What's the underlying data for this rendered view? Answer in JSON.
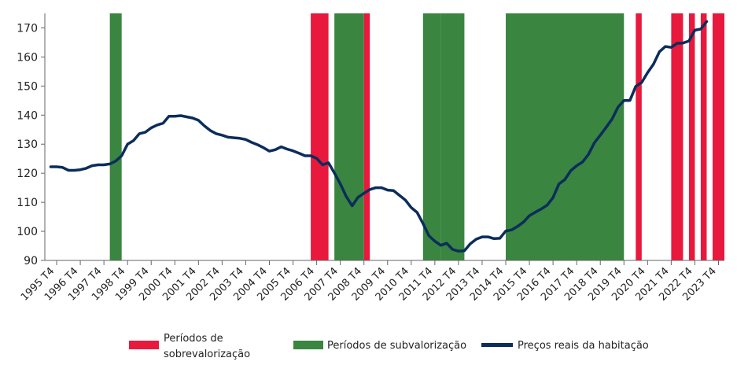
{
  "chart_data": {
    "type": "line",
    "title": "",
    "xlabel": "",
    "ylabel": "",
    "ylim": [
      90,
      175
    ],
    "yticks": [
      90,
      100,
      110,
      120,
      130,
      140,
      150,
      160,
      170
    ],
    "x_categories": [
      "1995 T4",
      "1996 T4",
      "1997 T4",
      "1998 T4",
      "1999 T4",
      "2000 T4",
      "2001 T4",
      "2002 T4",
      "2003 T4",
      "2004 T4",
      "2005 T4",
      "2006 T4",
      "2007 T4",
      "2008 T4",
      "2009 T4",
      "2010 T4",
      "2011 T4",
      "2012 T4",
      "2013 T4",
      "2014 T4",
      "2015 T4",
      "2016 T4",
      "2017 T4",
      "2018 T4",
      "2019 T4",
      "2020 T4",
      "2021 T4",
      "2022 T4",
      "2023 T4"
    ],
    "grid": false,
    "legend_position": "bottom",
    "colors": {
      "overvaluation": "#e8193c",
      "undervaluation": "#3a8540",
      "line": "#0b2d5b"
    },
    "overvaluation_periods": [
      [
        2006.75,
        2007.5
      ],
      [
        2009.0,
        2009.25
      ],
      [
        2020.5,
        2020.75
      ],
      [
        2022.0,
        2022.5
      ],
      [
        2022.75,
        2023.0
      ],
      [
        2023.25,
        2023.5
      ],
      [
        2023.75,
        2024.25
      ]
    ],
    "undervaluation_periods": [
      [
        1998.25,
        1998.75
      ],
      [
        2007.75,
        2009.0
      ],
      [
        2011.5,
        2012.25
      ],
      [
        2012.25,
        2013.25
      ],
      [
        2015.0,
        2020.0
      ]
    ],
    "series": [
      {
        "name": "Preços reais da habitação",
        "points": [
          [
            1995.75,
            122.2
          ],
          [
            1996.0,
            122.2
          ],
          [
            1996.25,
            122.0
          ],
          [
            1996.5,
            121.0
          ],
          [
            1996.75,
            121.0
          ],
          [
            1997.0,
            121.2
          ],
          [
            1997.25,
            121.7
          ],
          [
            1997.5,
            122.6
          ],
          [
            1997.75,
            122.9
          ],
          [
            1998.0,
            122.9
          ],
          [
            1998.25,
            123.2
          ],
          [
            1998.5,
            124.2
          ],
          [
            1998.75,
            126.0
          ],
          [
            1999.0,
            130.0
          ],
          [
            1999.25,
            131.2
          ],
          [
            1999.5,
            133.6
          ],
          [
            1999.75,
            134.1
          ],
          [
            2000.0,
            135.6
          ],
          [
            2000.25,
            136.6
          ],
          [
            2000.5,
            137.2
          ],
          [
            2000.75,
            139.6
          ],
          [
            2001.0,
            139.6
          ],
          [
            2001.25,
            139.8
          ],
          [
            2001.5,
            139.4
          ],
          [
            2001.75,
            139.0
          ],
          [
            2002.0,
            138.2
          ],
          [
            2002.25,
            136.3
          ],
          [
            2002.5,
            134.7
          ],
          [
            2002.75,
            133.6
          ],
          [
            2003.0,
            133.1
          ],
          [
            2003.25,
            132.4
          ],
          [
            2003.5,
            132.2
          ],
          [
            2003.75,
            132.0
          ],
          [
            2004.0,
            131.6
          ],
          [
            2004.25,
            130.6
          ],
          [
            2004.5,
            129.8
          ],
          [
            2004.75,
            128.8
          ],
          [
            2005.0,
            127.6
          ],
          [
            2005.25,
            128.1
          ],
          [
            2005.5,
            129.1
          ],
          [
            2005.75,
            128.3
          ],
          [
            2006.0,
            127.7
          ],
          [
            2006.25,
            126.9
          ],
          [
            2006.5,
            126.0
          ],
          [
            2006.75,
            126.0
          ],
          [
            2007.0,
            125.1
          ],
          [
            2007.25,
            122.9
          ],
          [
            2007.5,
            123.6
          ],
          [
            2007.75,
            120.1
          ],
          [
            2008.0,
            116.3
          ],
          [
            2008.25,
            112.0
          ],
          [
            2008.5,
            108.8
          ],
          [
            2008.75,
            111.7
          ],
          [
            2009.0,
            113.1
          ],
          [
            2009.25,
            114.4
          ],
          [
            2009.5,
            115.0
          ],
          [
            2009.75,
            115.0
          ],
          [
            2010.0,
            114.2
          ],
          [
            2010.25,
            114.0
          ],
          [
            2010.5,
            112.4
          ],
          [
            2010.75,
            110.8
          ],
          [
            2011.0,
            108.2
          ],
          [
            2011.25,
            106.5
          ],
          [
            2011.5,
            102.7
          ],
          [
            2011.75,
            98.5
          ],
          [
            2012.0,
            96.6
          ],
          [
            2012.25,
            95.2
          ],
          [
            2012.5,
            95.9
          ],
          [
            2012.75,
            93.8
          ],
          [
            2013.0,
            93.2
          ],
          [
            2013.25,
            93.3
          ],
          [
            2013.5,
            95.7
          ],
          [
            2013.75,
            97.3
          ],
          [
            2014.0,
            98.1
          ],
          [
            2014.25,
            98.1
          ],
          [
            2014.5,
            97.5
          ],
          [
            2014.75,
            97.6
          ],
          [
            2015.0,
            100.1
          ],
          [
            2015.25,
            100.5
          ],
          [
            2015.5,
            101.7
          ],
          [
            2015.75,
            103.2
          ],
          [
            2016.0,
            105.4
          ],
          [
            2016.25,
            106.6
          ],
          [
            2016.5,
            107.7
          ],
          [
            2016.75,
            109.0
          ],
          [
            2017.0,
            111.6
          ],
          [
            2017.25,
            116.3
          ],
          [
            2017.5,
            117.8
          ],
          [
            2017.75,
            120.9
          ],
          [
            2018.0,
            122.6
          ],
          [
            2018.25,
            123.9
          ],
          [
            2018.5,
            126.5
          ],
          [
            2018.75,
            130.5
          ],
          [
            2019.0,
            133.1
          ],
          [
            2019.25,
            135.8
          ],
          [
            2019.5,
            138.7
          ],
          [
            2019.75,
            142.8
          ],
          [
            2020.0,
            145.0
          ],
          [
            2020.25,
            145.0
          ],
          [
            2020.5,
            149.9
          ],
          [
            2020.75,
            151.2
          ],
          [
            2021.0,
            154.6
          ],
          [
            2021.25,
            157.5
          ],
          [
            2021.5,
            161.8
          ],
          [
            2021.75,
            163.6
          ],
          [
            2022.0,
            163.3
          ],
          [
            2022.25,
            164.7
          ],
          [
            2022.5,
            164.8
          ],
          [
            2022.75,
            165.5
          ],
          [
            2023.0,
            169.2
          ],
          [
            2023.25,
            169.6
          ],
          [
            2023.5,
            172.2
          ]
        ]
      }
    ],
    "legend": [
      {
        "key": "overvaluation",
        "label_lines": [
          "Períodos de",
          "sobrevalorização"
        ]
      },
      {
        "key": "undervaluation",
        "label_lines": [
          "Períodos de subvalorização"
        ]
      },
      {
        "key": "line",
        "label_lines": [
          "Preços reais da habitação"
        ]
      }
    ]
  }
}
